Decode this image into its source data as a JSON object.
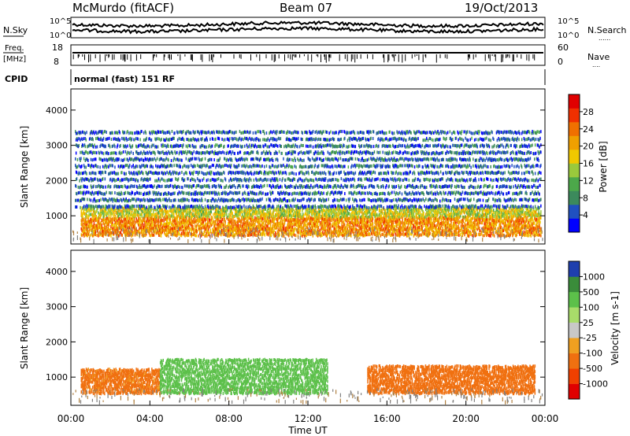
{
  "header": {
    "station": "McMurdo (fitACF)",
    "beam": "Beam 07",
    "date": "19/Oct/2013"
  },
  "noise_panel": {
    "left_label": "N.Sky",
    "right_label": "N.Search",
    "right_label_dots": "......",
    "left_ticks": [
      "10^5",
      "10^0"
    ],
    "right_ticks": [
      "10^5",
      "10^0"
    ]
  },
  "freq_panel": {
    "left_label_line1": "Freq.",
    "left_label_line2": "[MHz]",
    "right_label": "Nave",
    "right_label_dots": "....",
    "left_ticks": [
      "18",
      "8"
    ],
    "right_ticks": [
      "60",
      "0"
    ]
  },
  "cpid": {
    "label": "CPID",
    "mode": "normal (fast) 151 RF"
  },
  "colors": {
    "power_scale": [
      "#0000ff",
      "#2050c0",
      "#3c8a5c",
      "#4ca84a",
      "#9ac93c",
      "#f0c800",
      "#f0a000",
      "#f07000",
      "#f03000",
      "#e00000"
    ],
    "velocity_scale": [
      "#1f3fae",
      "#3a8c3a",
      "#5cc04a",
      "#a8dc6a",
      "#c8c8c8",
      "#f0a020",
      "#f07010",
      "#f04000",
      "#e00000"
    ],
    "ground_scatter": "#808080"
  },
  "chart_data": [
    {
      "type": "heatmap",
      "name": "power-panel",
      "ylabel": "Slant Range [km]",
      "ylim": [
        200,
        4600
      ],
      "xlim": [
        0,
        24
      ],
      "y_ticks": [
        "1000",
        "2000",
        "3000",
        "4000"
      ],
      "y_tick_values": [
        1000,
        2000,
        3000,
        4000
      ],
      "colorbar": {
        "label": "Power [dB]",
        "ticks": [
          "4",
          "8",
          "12",
          "16",
          "20",
          "24",
          "28"
        ],
        "tick_values": [
          4,
          8,
          12,
          16,
          20,
          24,
          28
        ],
        "range": [
          0,
          32
        ]
      },
      "echo_regions": [
        {
          "desc": "main F-region band",
          "t_start": 0.5,
          "t_end": 23.8,
          "range_low_km": 500,
          "range_high_km": 1300,
          "power_db": 22
        },
        {
          "desc": "scattered upper echoes",
          "t_start": 0.2,
          "t_end": 23.8,
          "range_low_km": 1300,
          "range_high_km": 3600,
          "power_db": 6
        }
      ]
    },
    {
      "type": "heatmap",
      "name": "velocity-panel",
      "ylabel": "Slant Range [km]",
      "ylim": [
        200,
        4600
      ],
      "xlim": [
        0,
        24
      ],
      "y_ticks": [
        "1000",
        "2000",
        "3000",
        "4000"
      ],
      "y_tick_values": [
        1000,
        2000,
        3000,
        4000
      ],
      "colorbar": {
        "label": "Velocity [m s-1]",
        "ticks": [
          "1000",
          "500",
          "100",
          "25",
          "-25",
          "-100",
          "-500",
          "-1000"
        ]
      },
      "echo_regions": [
        {
          "desc": "orange band (away)",
          "t_start": 0.5,
          "t_end": 4.5,
          "range_low_km": 600,
          "range_high_km": 1300,
          "velocity": -150
        },
        {
          "desc": "green band (toward)",
          "t_start": 4.5,
          "t_end": 13.0,
          "range_low_km": 600,
          "range_high_km": 1600,
          "velocity": 150
        },
        {
          "desc": "orange band (away)",
          "t_start": 15.0,
          "t_end": 23.5,
          "range_low_km": 600,
          "range_high_km": 1400,
          "velocity": -200
        }
      ]
    }
  ],
  "x_axis": {
    "label": "Time UT",
    "ticks": [
      "00:00",
      "04:00",
      "08:00",
      "12:00",
      "16:00",
      "20:00",
      "00:00"
    ],
    "tick_values": [
      0,
      4,
      8,
      12,
      16,
      20,
      24
    ]
  }
}
